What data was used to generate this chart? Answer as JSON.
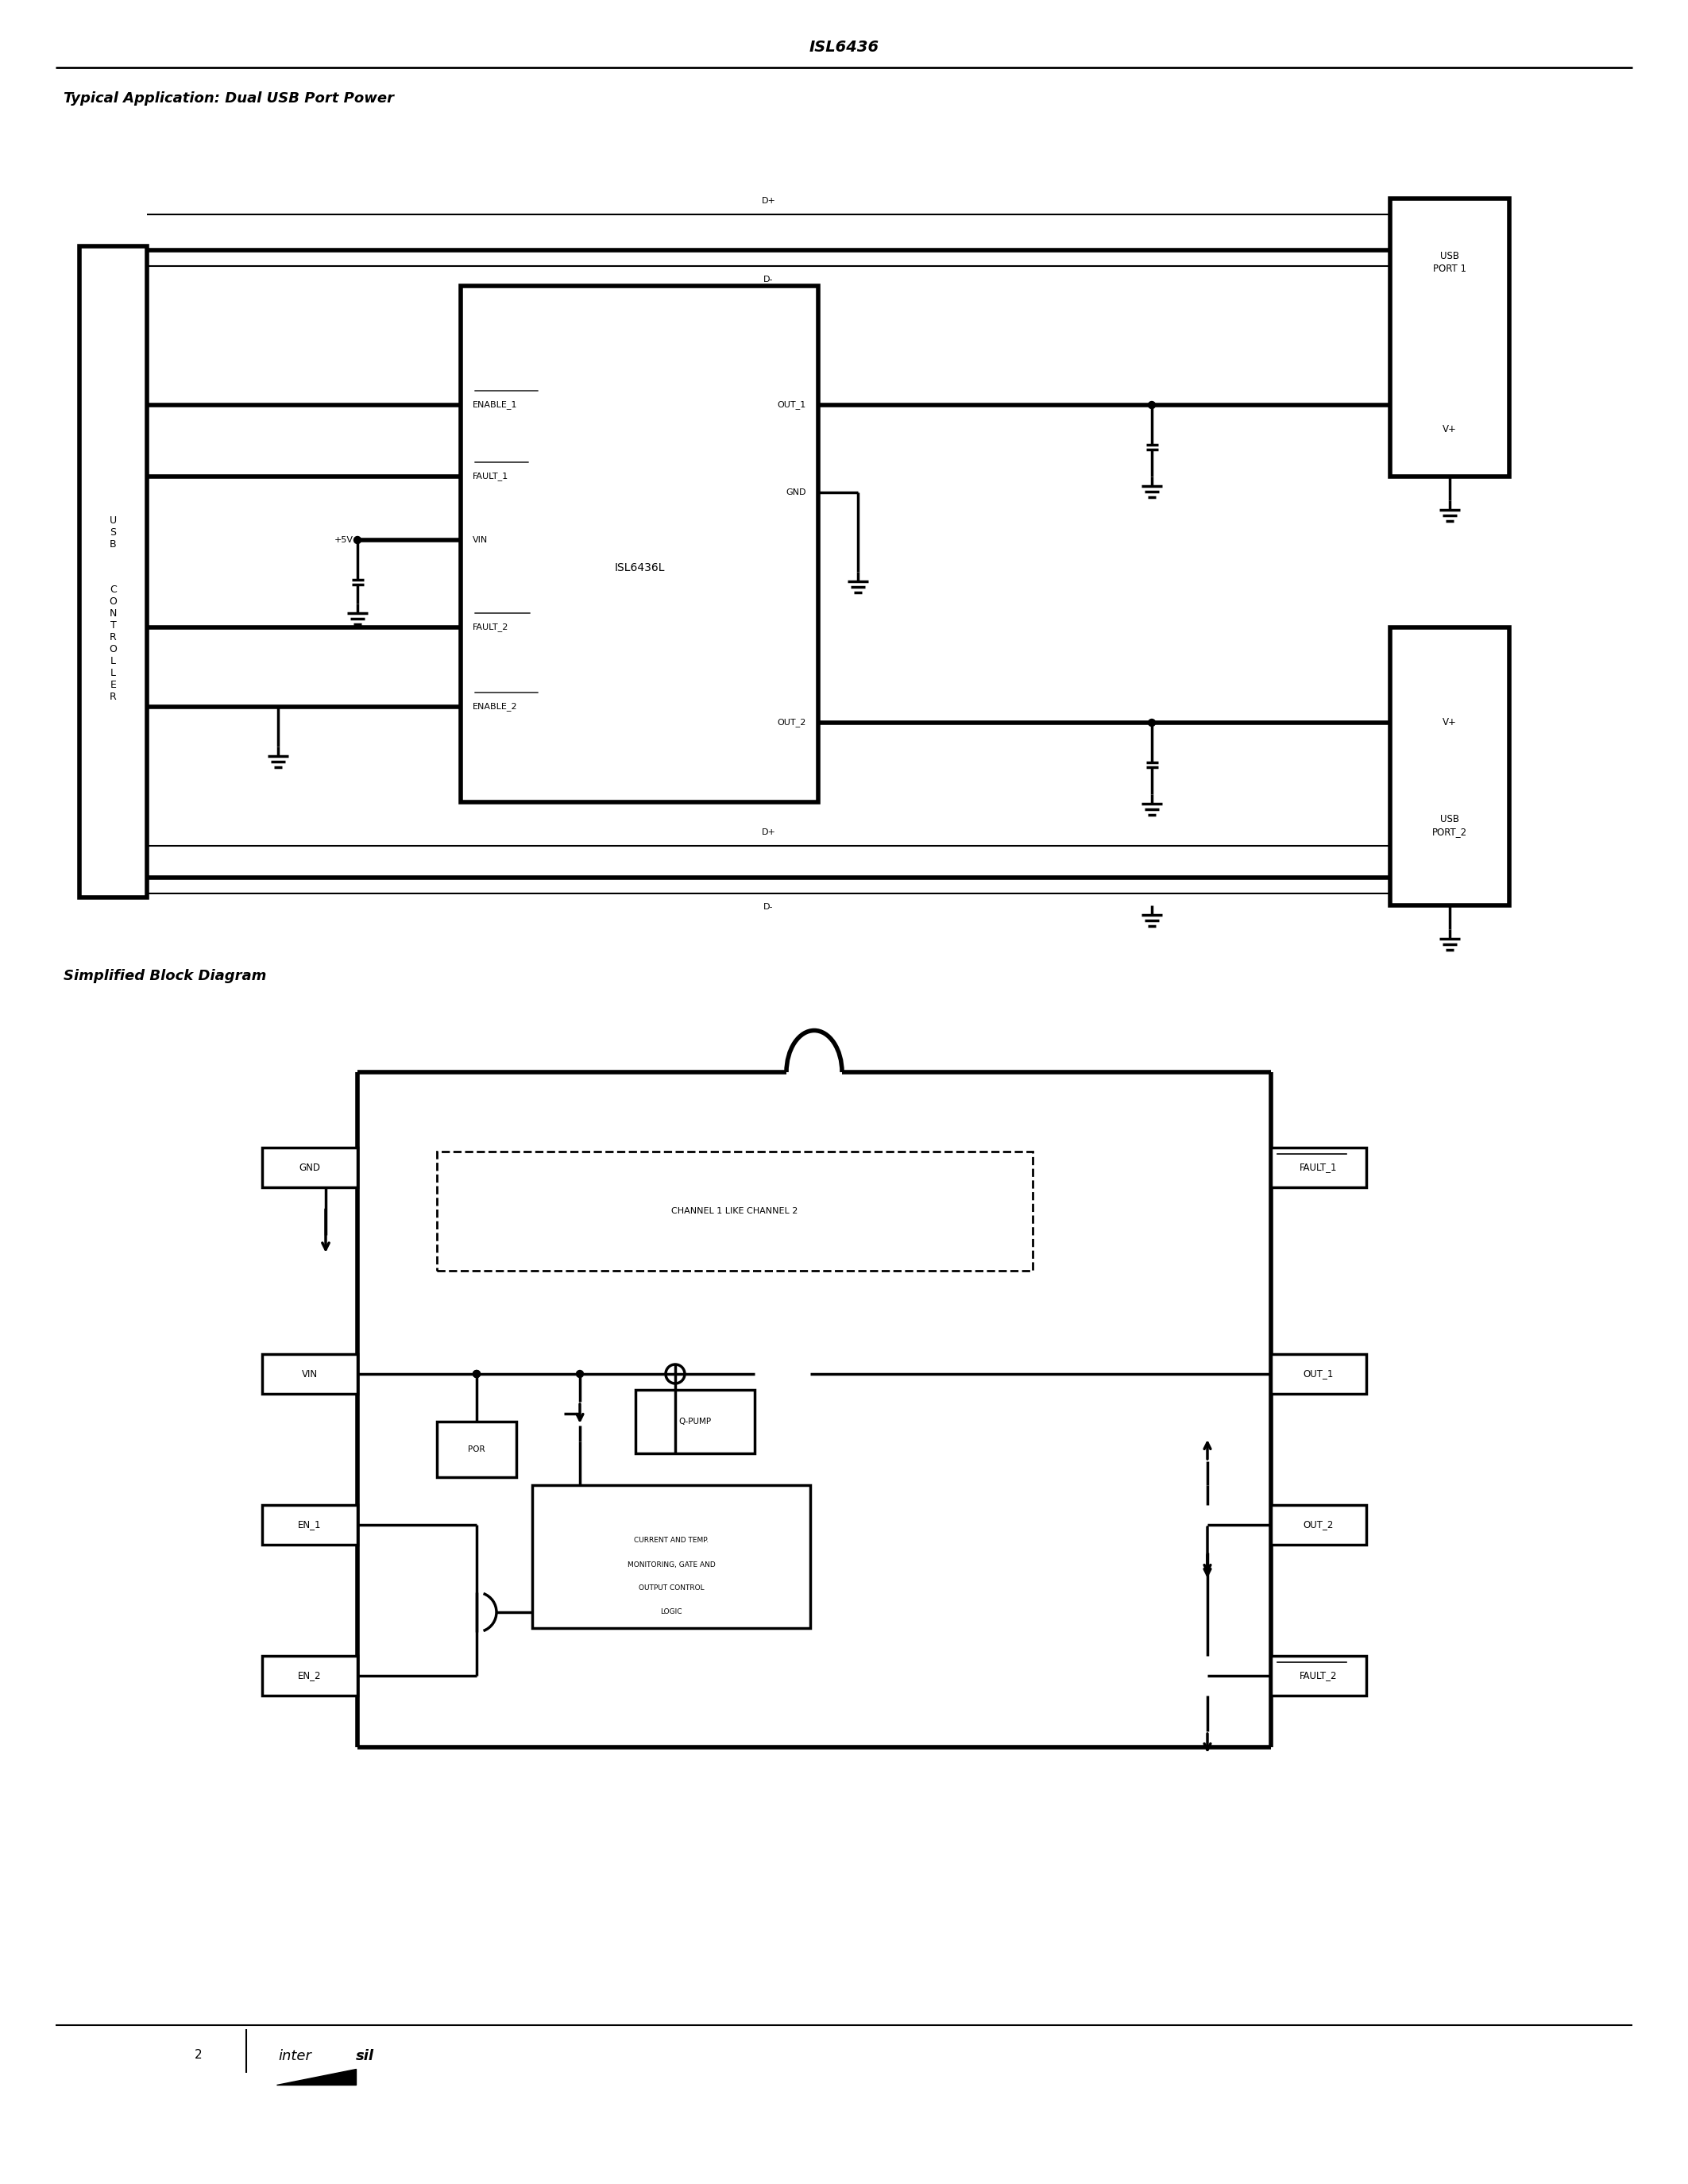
{
  "page_title": "ISL6436",
  "section1_title": "Typical Application: Dual USB Port Power",
  "section2_title": "Simplified Block Diagram",
  "page_number": "2",
  "bg_color": "#ffffff",
  "line_color": "#000000",
  "intersil_text": "intersil"
}
